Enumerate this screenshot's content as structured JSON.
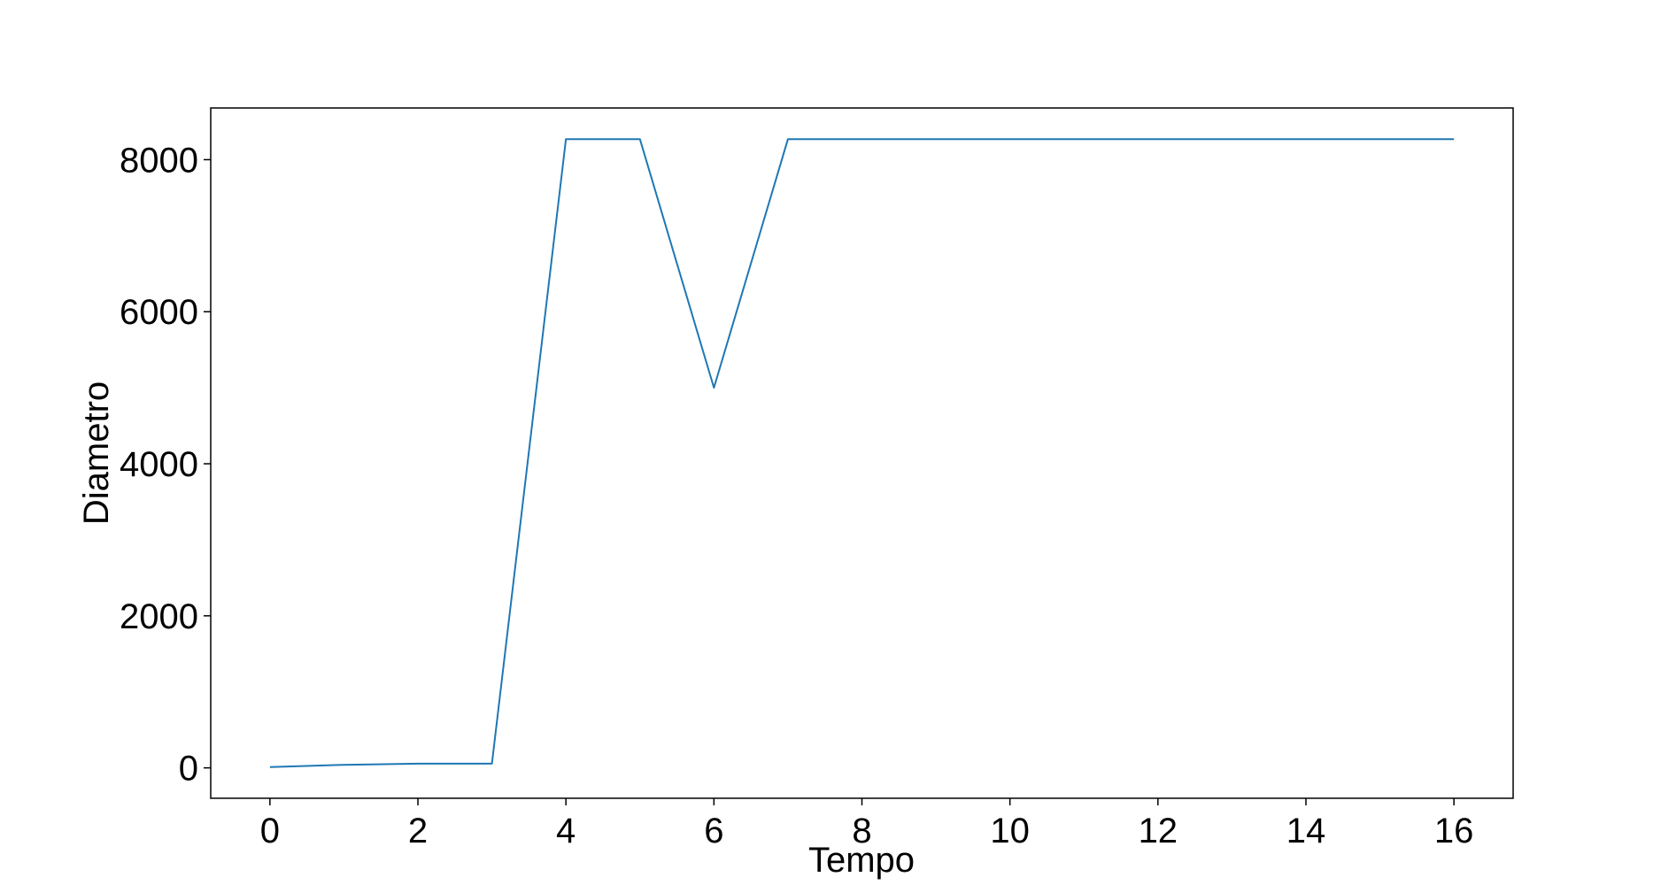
{
  "chart_data": {
    "type": "line",
    "title": "",
    "xlabel": "Tempo",
    "ylabel": "Diametro",
    "xlim": [
      -0.8,
      16.8
    ],
    "ylim": [
      -400,
      8680
    ],
    "x_ticks": [
      0,
      2,
      4,
      6,
      8,
      10,
      12,
      14,
      16
    ],
    "y_ticks": [
      0,
      2000,
      4000,
      6000,
      8000
    ],
    "grid": false,
    "legend": "none",
    "series": [
      {
        "color": "#1f77b4",
        "x": [
          0,
          1,
          2,
          3,
          4,
          5,
          6,
          7,
          8,
          9,
          10,
          11,
          12,
          13,
          14,
          15,
          16
        ],
        "y": [
          10,
          40,
          55,
          55,
          8270,
          8270,
          5000,
          8270,
          8270,
          8270,
          8270,
          8270,
          8270,
          8270,
          8270,
          8270,
          8270
        ]
      }
    ]
  }
}
